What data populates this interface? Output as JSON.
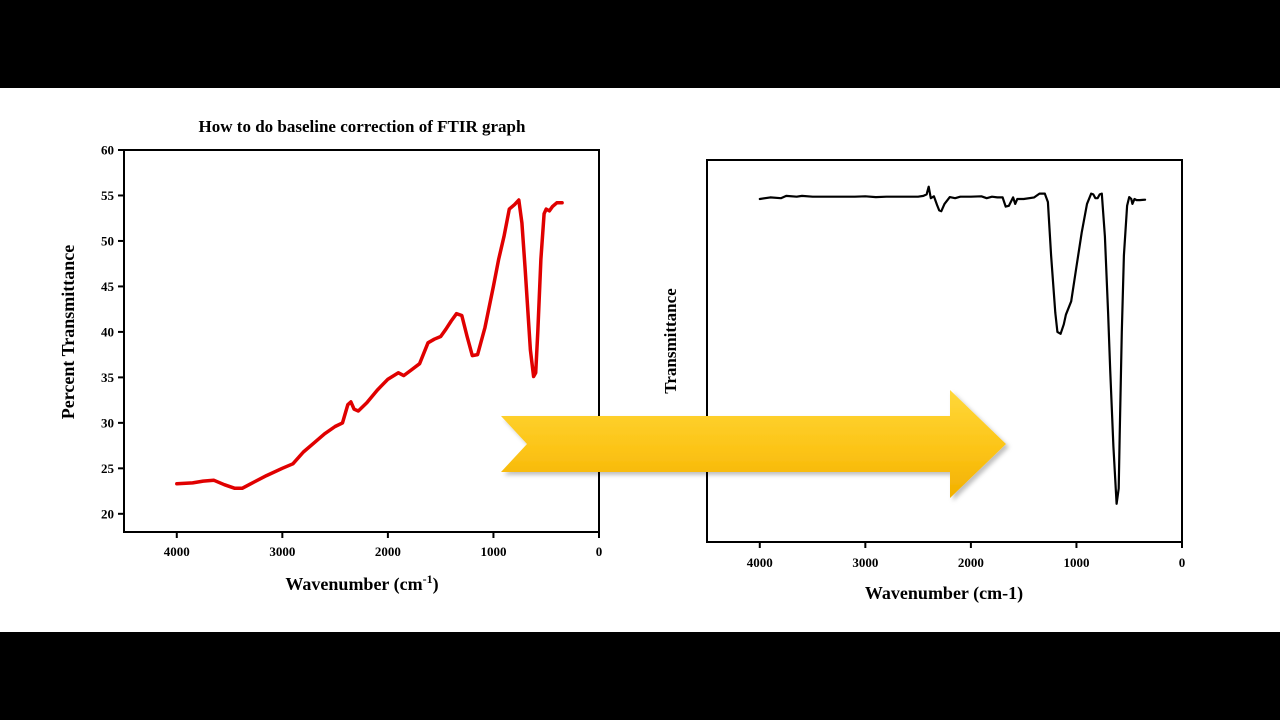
{
  "colors": {
    "background_band": "#000000",
    "panel": "#ffffff",
    "raw_series": "#e00000",
    "corrected_series": "#000000",
    "arrow_light": "#ffd21f",
    "arrow_dark": "#f5b400"
  },
  "chart_data": [
    {
      "type": "line",
      "title": "How to do baseline correction of FTIR graph",
      "xlabel_main": "Wavenumber (cm",
      "xlabel_sup": "-1",
      "xlabel_end": ")",
      "ylabel": "Percent Transmittance",
      "xlim": [
        4500,
        0
      ],
      "ylim": [
        18,
        60
      ],
      "xticks": [
        4000,
        3000,
        2000,
        1000,
        0
      ],
      "yticks": [
        20,
        25,
        30,
        35,
        40,
        45,
        50,
        55,
        60
      ],
      "grid": false,
      "series": [
        {
          "x": [
            4000,
            3850,
            3750,
            3650,
            3550,
            3450,
            3380,
            3300,
            3150,
            3000,
            2900,
            2800,
            2700,
            2600,
            2500,
            2430,
            2380,
            2350,
            2320,
            2280,
            2200,
            2100,
            2000,
            1900,
            1850,
            1780,
            1700,
            1620,
            1560,
            1500,
            1450,
            1400,
            1350,
            1300,
            1250,
            1200,
            1150,
            1120,
            1080,
            1000,
            950,
            900,
            850,
            800,
            760,
            730,
            700,
            650,
            620,
            600,
            580,
            550,
            520,
            500,
            470,
            440,
            400,
            350
          ],
          "y": [
            23.3,
            23.4,
            23.6,
            23.7,
            23.2,
            22.8,
            22.8,
            23.3,
            24.2,
            25.0,
            25.5,
            26.8,
            27.8,
            28.8,
            29.6,
            30.0,
            32.0,
            32.3,
            31.5,
            31.3,
            32.2,
            33.6,
            34.8,
            35.5,
            35.2,
            35.8,
            36.5,
            38.8,
            39.2,
            39.5,
            40.3,
            41.2,
            42.0,
            41.8,
            39.5,
            37.4,
            37.5,
            38.8,
            40.5,
            45.0,
            48.0,
            50.5,
            53.5,
            54.0,
            54.5,
            52.0,
            47.0,
            38.0,
            35.1,
            35.5,
            40.0,
            48.0,
            53.0,
            53.5,
            53.3,
            53.8,
            54.2,
            54.2
          ]
        }
      ]
    },
    {
      "type": "line",
      "title": "",
      "xlabel": "Wavenumber (cm-1)",
      "ylabel": "Transmittance",
      "xlim": [
        4500,
        0
      ],
      "ylim": [
        0,
        100
      ],
      "xticks": [
        4000,
        3000,
        2000,
        1000,
        0
      ],
      "yticks": [],
      "grid": false,
      "series": [
        {
          "x": [
            4000,
            3900,
            3800,
            3750,
            3650,
            3600,
            3500,
            3400,
            3300,
            3200,
            3100,
            3000,
            2900,
            2800,
            2700,
            2600,
            2500,
            2450,
            2420,
            2400,
            2380,
            2350,
            2320,
            2300,
            2280,
            2250,
            2200,
            2150,
            2100,
            2000,
            1900,
            1850,
            1800,
            1750,
            1700,
            1670,
            1640,
            1600,
            1580,
            1560,
            1500,
            1400,
            1350,
            1300,
            1270,
            1240,
            1200,
            1180,
            1150,
            1120,
            1100,
            1050,
            1000,
            950,
            900,
            860,
            840,
            820,
            800,
            780,
            760,
            730,
            700,
            680,
            650,
            620,
            600,
            590,
            570,
            550,
            520,
            500,
            480,
            470,
            450,
            430,
            400,
            350
          ],
          "y": [
            89.8,
            90.2,
            90.0,
            90.6,
            90.4,
            90.6,
            90.4,
            90.4,
            90.4,
            90.4,
            90.4,
            90.5,
            90.3,
            90.4,
            90.4,
            90.4,
            90.4,
            90.6,
            91.0,
            93.0,
            90.0,
            90.5,
            88.2,
            86.8,
            86.6,
            88.5,
            90.3,
            90.0,
            90.4,
            90.4,
            90.5,
            90.0,
            90.4,
            90.2,
            90.2,
            87.8,
            88.0,
            90.2,
            88.5,
            89.8,
            89.8,
            90.2,
            91.2,
            91.2,
            89.0,
            75.0,
            60.0,
            55.0,
            54.5,
            57.0,
            59.5,
            63.0,
            72.0,
            81.0,
            88.5,
            91.2,
            91.0,
            90.0,
            90.0,
            91.0,
            91.2,
            80.0,
            60.0,
            45.0,
            25.0,
            10.0,
            14.0,
            28.0,
            55.0,
            75.0,
            88.0,
            90.3,
            89.8,
            88.5,
            89.8,
            89.5,
            89.5,
            89.6
          ]
        }
      ]
    }
  ]
}
